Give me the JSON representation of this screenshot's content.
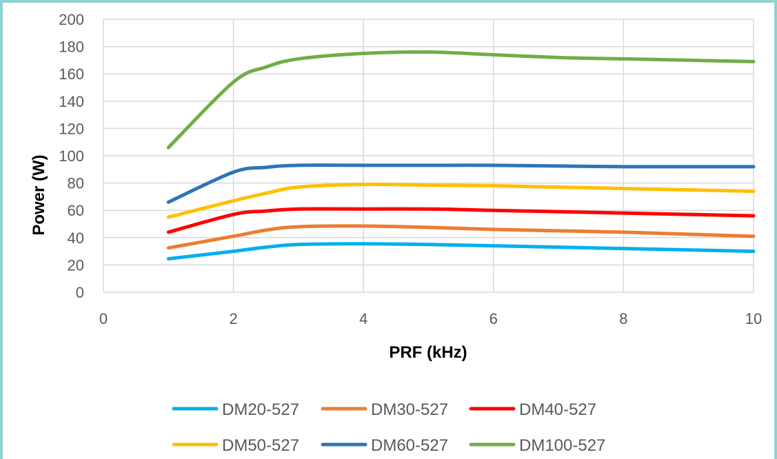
{
  "chart_data": {
    "type": "line",
    "xlabel": "PRF (kHz)",
    "ylabel": "Power (W)",
    "xlim": [
      0,
      10
    ],
    "ylim": [
      0,
      200
    ],
    "xticks": [
      0,
      2,
      4,
      6,
      8,
      10
    ],
    "yticks": [
      0,
      20,
      40,
      60,
      80,
      100,
      120,
      140,
      160,
      180,
      200
    ],
    "grid": "vertical and horizontal major gridlines",
    "legend_position": "bottom",
    "x": [
      1,
      2,
      2.5,
      3,
      4,
      5,
      6,
      7,
      8,
      9,
      10
    ],
    "series": [
      {
        "name": "DM20-527",
        "color": "#00b0f0",
        "values": [
          24.5,
          30,
          33,
          35,
          35.5,
          35,
          34,
          33,
          32,
          31,
          30
        ]
      },
      {
        "name": "DM30-527",
        "color": "#ed7d31",
        "values": [
          32.5,
          41,
          45.5,
          48,
          48.5,
          47.5,
          46,
          45,
          44,
          42.5,
          41
        ]
      },
      {
        "name": "DM40-527",
        "color": "#ff0000",
        "values": [
          44,
          57,
          59.5,
          61,
          61,
          61,
          60,
          59,
          58,
          57,
          56
        ]
      },
      {
        "name": "DM50-527",
        "color": "#ffc000",
        "values": [
          55,
          67,
          72.5,
          77,
          79,
          78.5,
          78,
          77,
          76,
          75,
          74
        ]
      },
      {
        "name": "DM60-527",
        "color": "#2e75b6",
        "values": [
          66,
          88,
          91.5,
          93,
          93,
          93,
          93,
          92.5,
          92,
          92,
          92
        ]
      },
      {
        "name": "DM100-527",
        "color": "#70ad47",
        "values": [
          106,
          154,
          165,
          171,
          175,
          176,
          174,
          172,
          171,
          170,
          169
        ]
      }
    ]
  },
  "colors": {
    "grid": "#d9d9d9",
    "tick_text": "#595959",
    "frame_border": "#8fd3d0"
  }
}
